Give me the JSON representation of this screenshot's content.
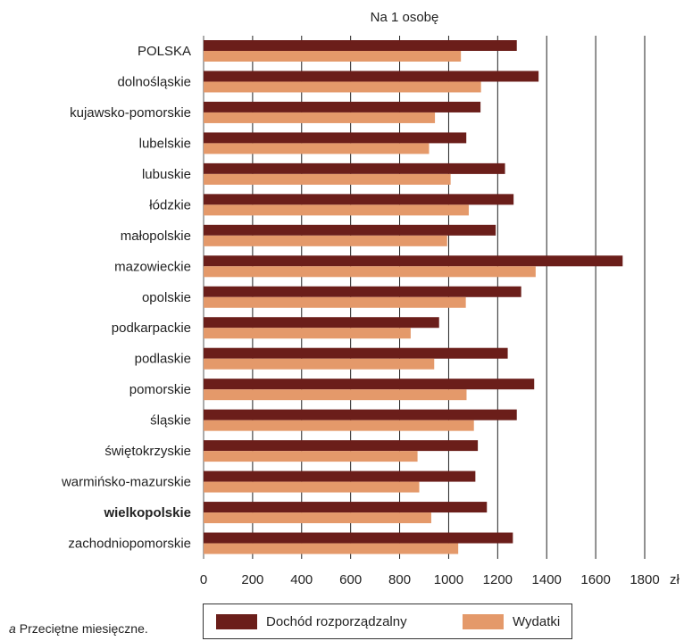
{
  "chart_data": {
    "type": "bar",
    "orientation": "horizontal",
    "title": "Na 1 osobę",
    "xlabel": "",
    "ylabel": "",
    "x_unit": "zł",
    "xlim": [
      0,
      1800
    ],
    "x_ticks": [
      0,
      200,
      400,
      600,
      800,
      1000,
      1200,
      1400,
      1600,
      1800
    ],
    "grid": "vertical",
    "categories": [
      "POLSKA",
      "dolnośląskie",
      "kujawsko-pomorskie",
      "lubelskie",
      "lubuskie",
      "łódzkie",
      "małopolskie",
      "mazowieckie",
      "opolskie",
      "podkarpackie",
      "podlaskie",
      "pomorskie",
      "śląskie",
      "świętokrzyskie",
      "warmińsko-mazurskie",
      "wielkopolskie",
      "zachodniopomorskie"
    ],
    "highlighted_category": "wielkopolskie",
    "series": [
      {
        "name": "Dochód rozporządzalny",
        "color": "#6b1e1a",
        "values": [
          1278,
          1367,
          1130,
          1072,
          1230,
          1265,
          1192,
          1710,
          1296,
          961,
          1241,
          1349,
          1278,
          1119,
          1109,
          1156,
          1262
        ]
      },
      {
        "name": "Wydatki",
        "color": "#e4996a",
        "values": [
          1050,
          1132,
          944,
          920,
          1008,
          1082,
          994,
          1355,
          1070,
          845,
          941,
          1073,
          1103,
          873,
          880,
          929,
          1039
        ]
      }
    ],
    "legend_position": "bottom"
  },
  "footnote": {
    "marker": "a",
    "text": "Przeciętne miesięczne."
  }
}
